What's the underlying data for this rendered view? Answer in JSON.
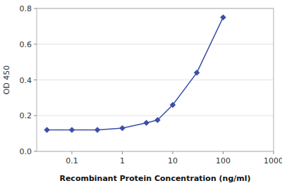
{
  "chart_data": {
    "type": "line",
    "x": [
      0.032,
      0.1,
      0.32,
      1.0,
      3.0,
      5.0,
      10.0,
      30.0,
      100.0
    ],
    "values": [
      0.12,
      0.12,
      0.12,
      0.13,
      0.16,
      0.175,
      0.26,
      0.44,
      0.75
    ],
    "color": "#3a4ea8",
    "marker": "diamond",
    "xlabel": "Recombinant Protein Concentration (ng/ml)",
    "ylabel": "OD 450",
    "log": "x",
    "xlim": [
      0.02,
      1000
    ],
    "ylim": [
      0.0,
      0.8
    ],
    "xticks": [
      0.1,
      1,
      10,
      100,
      1000
    ],
    "yticks": [
      {
        "value": 0.0,
        "label": "0.0"
      },
      0.2,
      0.4,
      0.6,
      0.8
    ],
    "grid": true
  }
}
